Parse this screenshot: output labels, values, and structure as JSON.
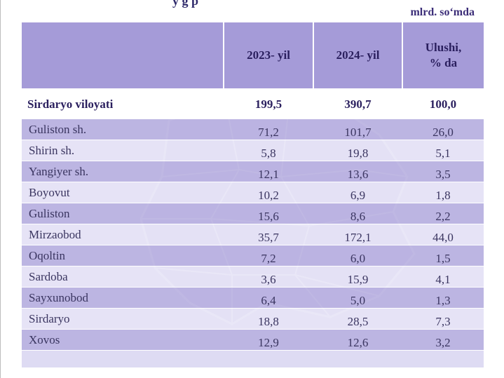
{
  "top_fragment": "y   g   p",
  "unit": "mlrd. so‘mda",
  "table": {
    "headers": [
      "",
      "2023- yil",
      "2024- yil",
      "Ulushi,\n% da"
    ],
    "header_ulushi_line1": "Ulushi,",
    "header_ulushi_line2": "% da",
    "total": {
      "name": "Sirdaryo viloyati",
      "v2023": "199,5",
      "v2024": "390,7",
      "share": "100,0"
    },
    "rows": [
      {
        "name": "Guliston sh.",
        "v2023": "71,2",
        "v2024": "101,7",
        "share": "26,0"
      },
      {
        "name": "Shirin sh.",
        "v2023": "5,8",
        "v2024": "19,8",
        "share": "5,1"
      },
      {
        "name": "Yangiyer sh.",
        "v2023": "12,1",
        "v2024": "13,6",
        "share": "3,5"
      },
      {
        "name": "Boyovut",
        "v2023": "10,2",
        "v2024": "6,9",
        "share": "1,8"
      },
      {
        "name": "Guliston",
        "v2023": "15,6",
        "v2024": "8,6",
        "share": "2,2"
      },
      {
        "name": "Mirzaobod",
        "v2023": "35,7",
        "v2024": "172,1",
        "share": "44,0"
      },
      {
        "name": "Oqoltin",
        "v2023": "7,2",
        "v2024": "6,0",
        "share": "1,5"
      },
      {
        "name": "Sardoba",
        "v2023": "3,6",
        "v2024": "15,9",
        "share": "4,1"
      },
      {
        "name": "Sayxunobod",
        "v2023": "6,4",
        "v2024": "5,0",
        "share": "1,3"
      },
      {
        "name": "Sirdaryo",
        "v2023": "18,8",
        "v2024": "28,5",
        "share": "7,3"
      },
      {
        "name": "Xovos",
        "v2023": "12,9",
        "v2024": "12,6",
        "share": "3,2"
      }
    ]
  },
  "colors": {
    "header_bg": "#a59bd8",
    "row_dark": "#b5acde",
    "row_light": "#e8e6f7",
    "text_dark": "#2a1f5e"
  },
  "icons": {
    "watermark": "region-map-watermark-icon"
  }
}
